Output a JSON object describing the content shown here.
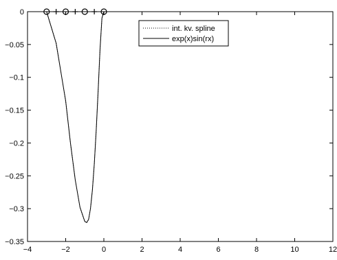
{
  "chart_data": {
    "type": "line",
    "title": "",
    "xlabel": "",
    "ylabel": "",
    "xlim": [
      -4,
      12
    ],
    "ylim": [
      -0.35,
      0
    ],
    "xticks": [
      -4,
      -2,
      0,
      2,
      4,
      6,
      8,
      10,
      12
    ],
    "yticks": [
      0,
      -0.05,
      -0.1,
      -0.15,
      -0.2,
      -0.25,
      -0.3,
      -0.35
    ],
    "xtick_labels": [
      "−4",
      "−2",
      "0",
      "2",
      "4",
      "6",
      "8",
      "10",
      "12"
    ],
    "ytick_labels": [
      "0",
      "−0.05",
      "−0.1",
      "−0.15",
      "−0.2",
      "−0.25",
      "−0.3",
      "−0.35"
    ],
    "grid": false,
    "legend_position": "top-right",
    "series": [
      {
        "name": "int. kv. spline",
        "style": "dotted",
        "color": "#000000",
        "x": [
          -3,
          -2.5,
          -2,
          -1.75,
          -1.5,
          -1.25,
          -1,
          -0.9,
          -0.8,
          -0.7,
          -0.6,
          -0.5,
          -0.4,
          -0.3,
          -0.2,
          -0.1,
          0,
          12
        ],
        "y": [
          0,
          -0.048,
          -0.136,
          -0.2,
          -0.256,
          -0.298,
          -0.3195,
          -0.3212,
          -0.3165,
          -0.2998,
          -0.2717,
          -0.2314,
          -0.1805,
          -0.121,
          -0.0572,
          -0.0098,
          0,
          0
        ]
      },
      {
        "name": "exp(x)sin(rx)",
        "style": "solid",
        "color": "#000000",
        "x": [
          -3,
          -2.5,
          -2,
          -1.75,
          -1.5,
          -1.25,
          -1,
          -0.9,
          -0.8,
          -0.7,
          -0.6,
          -0.5,
          -0.4,
          -0.3,
          -0.2,
          -0.1,
          0,
          12
        ],
        "y": [
          0,
          -0.048,
          -0.136,
          -0.2,
          -0.256,
          -0.298,
          -0.3195,
          -0.3212,
          -0.3165,
          -0.2998,
          -0.2717,
          -0.2314,
          -0.1805,
          -0.121,
          -0.0572,
          -0.0098,
          0,
          0
        ]
      }
    ],
    "markers": {
      "circles": [
        -3,
        -2,
        -1,
        0
      ],
      "plus": [
        -2.5,
        -1.5,
        -0.5
      ],
      "y": 0
    }
  }
}
